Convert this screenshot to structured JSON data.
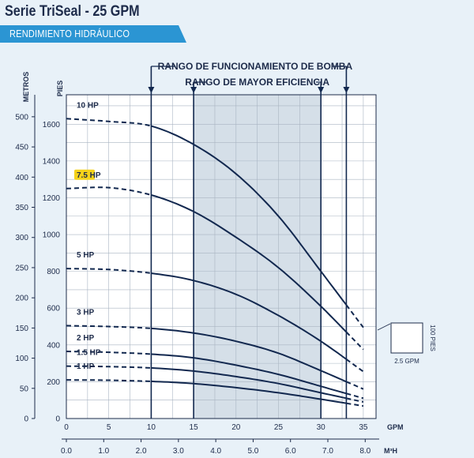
{
  "header": {
    "title": "Serie TriSeal - 25 GPM",
    "banner": "RENDIMIENTO HIDRÁULICO"
  },
  "colors": {
    "background": "#e8f1f8",
    "banner": "#2b95d3",
    "curve": "#12284f",
    "efficiency_band": "#b9cad9",
    "highlight": "#f5d21a"
  },
  "chart_data": {
    "type": "line",
    "title": "",
    "xlabel": "GPM",
    "x2label": "M³H",
    "ylabel": "PIES",
    "y2label": "METROS",
    "xlim": [
      0,
      36.5
    ],
    "ylim": [
      0,
      1760
    ],
    "x_ticks": [
      0,
      5,
      10,
      15,
      20,
      25,
      30,
      35
    ],
    "x2_ticks": [
      "0.0",
      "1.0",
      "2.0",
      "3.0",
      "4.0",
      "5.0",
      "6.0",
      "7.0",
      "8.0"
    ],
    "y_ticks": [
      0,
      200,
      400,
      600,
      800,
      1000,
      1200,
      1400,
      1600
    ],
    "y2_ticks": [
      "0",
      "50",
      "100",
      "150",
      "200",
      "250",
      "300",
      "350",
      "400",
      "450",
      "500"
    ],
    "operating_range": {
      "label": "RANGO DE FUNCIONAMIENTO DE BOMBA",
      "from": 10,
      "to": 33
    },
    "efficiency_range": {
      "label": "RANGO DE MAYOR EFICIENCIA",
      "from": 15,
      "to": 30
    },
    "series": [
      {
        "name": "10 HP",
        "x": [
          0,
          5,
          10,
          15,
          20,
          25,
          30,
          35
        ],
        "y": [
          1630,
          1615,
          1590,
          1490,
          1330,
          1100,
          800,
          495
        ],
        "highlight": false
      },
      {
        "name": "7.5 HP",
        "x": [
          0,
          5,
          10,
          15,
          20,
          25,
          30,
          35
        ],
        "y": [
          1250,
          1255,
          1215,
          1125,
          985,
          820,
          610,
          375
        ],
        "highlight": true
      },
      {
        "name": "5 HP",
        "x": [
          0,
          5,
          10,
          15,
          20,
          25,
          30,
          35
        ],
        "y": [
          815,
          810,
          790,
          750,
          675,
          560,
          420,
          255
        ],
        "highlight": false
      },
      {
        "name": "3 HP",
        "x": [
          0,
          5,
          10,
          15,
          20,
          25,
          30,
          35
        ],
        "y": [
          505,
          500,
          490,
          465,
          420,
          355,
          260,
          160
        ],
        "highlight": false
      },
      {
        "name": "2 HP",
        "x": [
          0,
          5,
          10,
          15,
          20,
          25,
          30,
          35
        ],
        "y": [
          365,
          360,
          350,
          330,
          290,
          240,
          175,
          110
        ],
        "highlight": false
      },
      {
        "name": "1.5 HP",
        "x": [
          0,
          5,
          10,
          15,
          20,
          25,
          30,
          35
        ],
        "y": [
          285,
          282,
          275,
          258,
          228,
          190,
          140,
          90
        ],
        "highlight": false
      },
      {
        "name": "1 HP",
        "x": [
          0,
          5,
          10,
          15,
          20,
          25,
          30,
          35
        ],
        "y": [
          210,
          208,
          202,
          190,
          168,
          140,
          105,
          68
        ],
        "highlight": false
      }
    ],
    "scale_key": {
      "x_label": "2.5 GPM",
      "y_label": "100 PIES"
    }
  }
}
